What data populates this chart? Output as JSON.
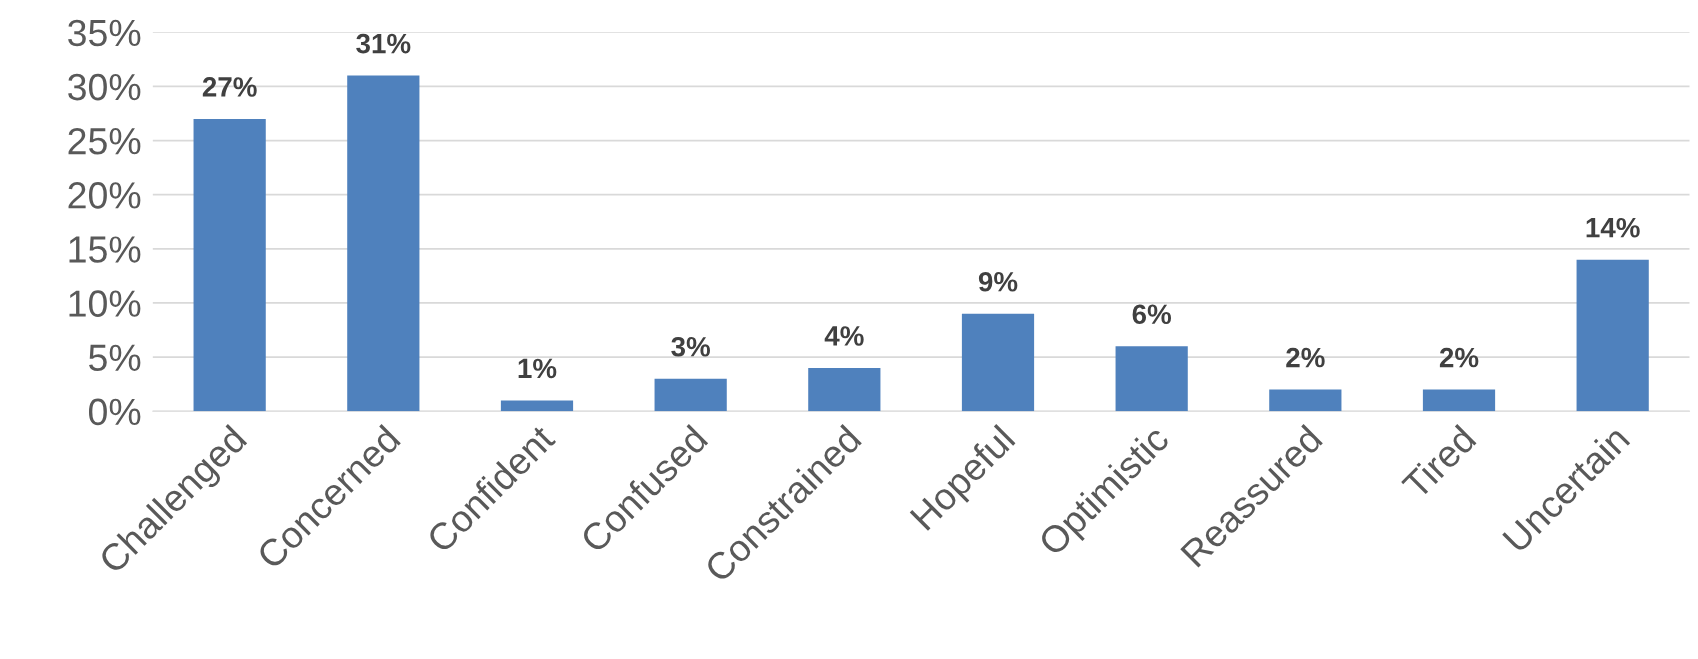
{
  "chart_data": {
    "type": "bar",
    "categories": [
      "Challenged",
      "Concerned",
      "Confident",
      "Confused",
      "Constrained",
      "Hopeful",
      "Optimistic",
      "Reassured",
      "Tired",
      "Uncertain"
    ],
    "values": [
      27,
      31,
      1,
      3,
      4,
      9,
      6,
      2,
      2,
      14
    ],
    "value_labels": [
      "27%",
      "31%",
      "1%",
      "3%",
      "4%",
      "9%",
      "6%",
      "2%",
      "2%",
      "14%"
    ],
    "color": "#4f81bd",
    "ylim": [
      0,
      35
    ],
    "yticks": [
      {
        "value": 0,
        "label": "0%"
      },
      {
        "value": 5,
        "label": "5%"
      },
      {
        "value": 10,
        "label": "10%"
      },
      {
        "value": 15,
        "label": "15%"
      },
      {
        "value": 20,
        "label": "20%"
      },
      {
        "value": 25,
        "label": "25%"
      },
      {
        "value": 30,
        "label": "30%"
      },
      {
        "value": 35,
        "label": "35%"
      }
    ],
    "grid": "y",
    "legend": false
  }
}
